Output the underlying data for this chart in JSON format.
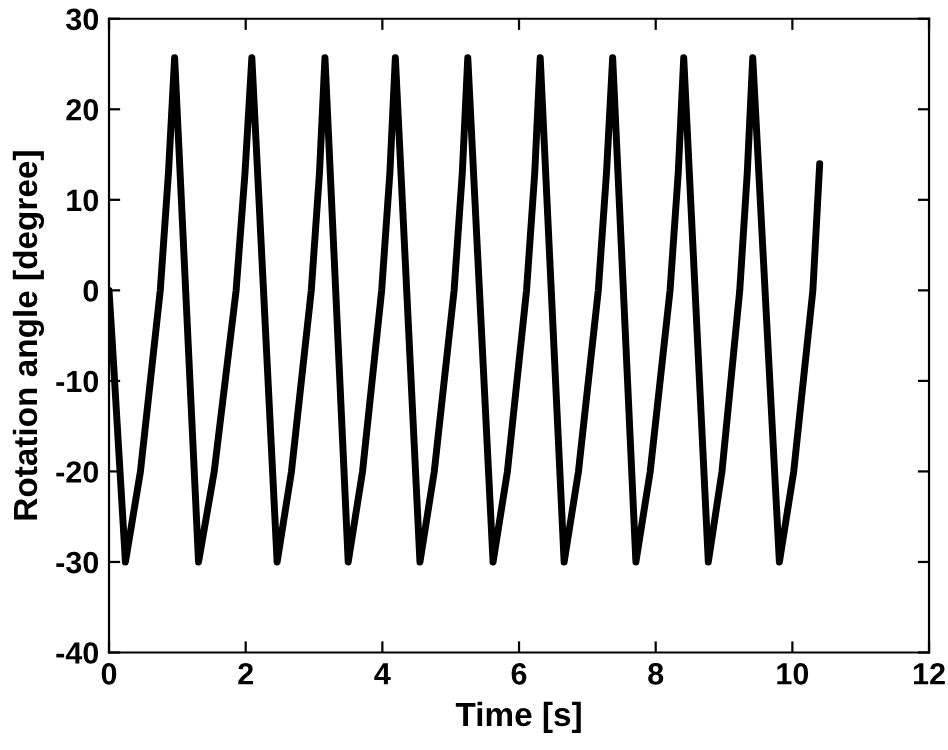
{
  "chart_data": {
    "type": "line",
    "xlabel": "Time [s]",
    "ylabel": "Rotation angle [degree]",
    "xlim": [
      0,
      12
    ],
    "xticks": [
      0,
      2,
      4,
      6,
      8,
      10,
      12
    ],
    "ylim": [
      -40,
      30
    ],
    "yticks": [
      -40,
      -30,
      -20,
      -10,
      0,
      10,
      20,
      30
    ],
    "grid": false,
    "marker": "none",
    "line_style": "solid",
    "series": [
      {
        "color": "#000000",
        "x": [
          0,
          0.05,
          0.24,
          0.46,
          0.75,
          0.87,
          0.96,
          1.31,
          1.54,
          1.86,
          1.99,
          2.09,
          2.46,
          2.67,
          2.96,
          3.08,
          3.16,
          3.5,
          3.71,
          3.99,
          4.11,
          4.19,
          4.55,
          4.76,
          5.05,
          5.17,
          5.25,
          5.62,
          5.83,
          6.11,
          6.23,
          6.31,
          6.66,
          6.87,
          7.16,
          7.28,
          7.37,
          7.71,
          7.92,
          8.21,
          8.33,
          8.41,
          8.77,
          8.97,
          9.23,
          9.34,
          9.42,
          9.81,
          10.02,
          10.3,
          10.4
        ],
        "values": [
          0,
          -6,
          -30,
          -20,
          0,
          13,
          25.7,
          -30,
          -20,
          0,
          13,
          25.7,
          -30,
          -20,
          0,
          13,
          25.7,
          -30,
          -20,
          0,
          13,
          25.7,
          -30,
          -20,
          0,
          13,
          25.7,
          -30,
          -20,
          0,
          13,
          25.7,
          -30,
          -20,
          0,
          13,
          25.7,
          -30,
          -20,
          0,
          13,
          25.7,
          -30,
          -20,
          0,
          13,
          25.7,
          -30,
          -20,
          0,
          14
        ]
      }
    ]
  }
}
